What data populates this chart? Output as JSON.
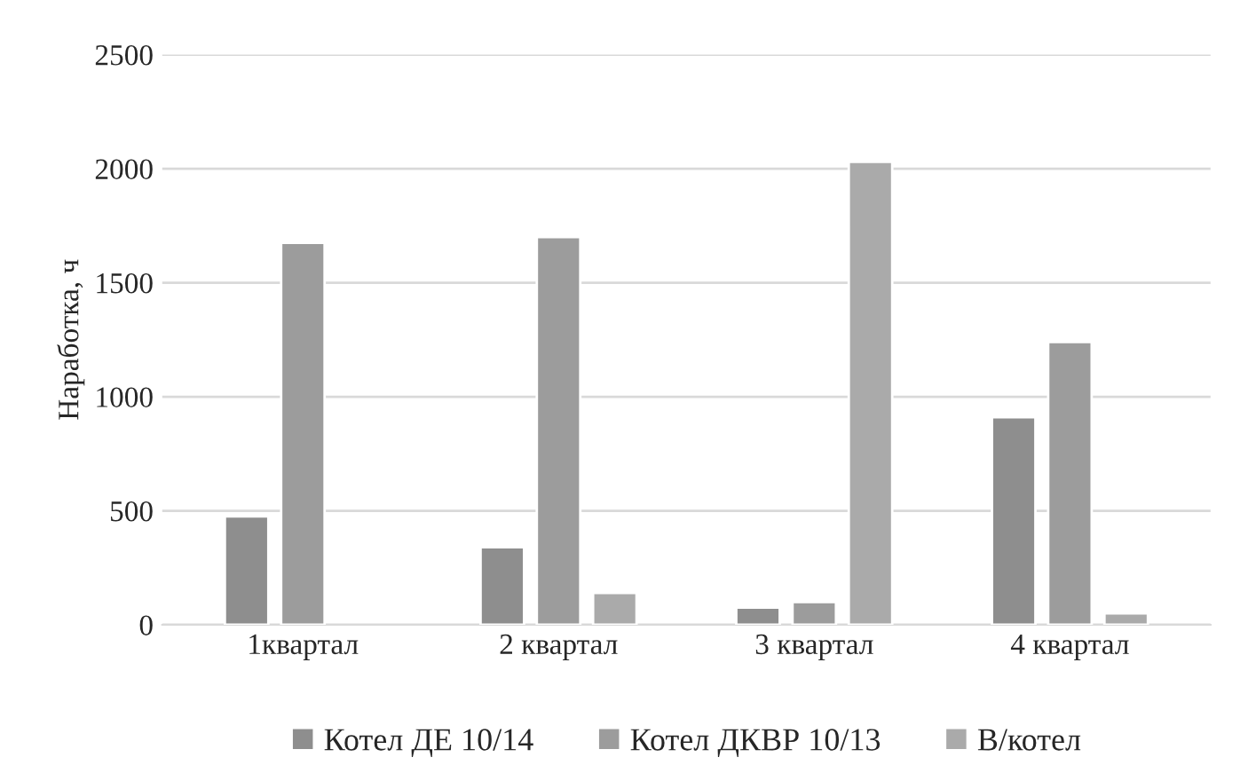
{
  "chart_data": {
    "type": "bar",
    "ylabel": "Наработка, ч",
    "categories": [
      "1квартал",
      "2 квартал",
      "3 квартал",
      "4 квартал"
    ],
    "series": [
      {
        "name": "Котел ДЕ 10/14",
        "color": "#8e8e8e",
        "values": [
          475,
          340,
          75,
          910
        ]
      },
      {
        "name": "Котел ДКВР 10/13",
        "color": "#9c9c9c",
        "values": [
          1675,
          1700,
          100,
          1240
        ]
      },
      {
        "name": "В/котел",
        "color": "#aaaaaa",
        "values": [
          null,
          140,
          2030,
          50
        ]
      }
    ],
    "ylim": [
      0,
      2500
    ],
    "yticks": [
      0,
      500,
      1000,
      1500,
      2000,
      2500
    ],
    "grid": "y",
    "legend": "bottom"
  }
}
